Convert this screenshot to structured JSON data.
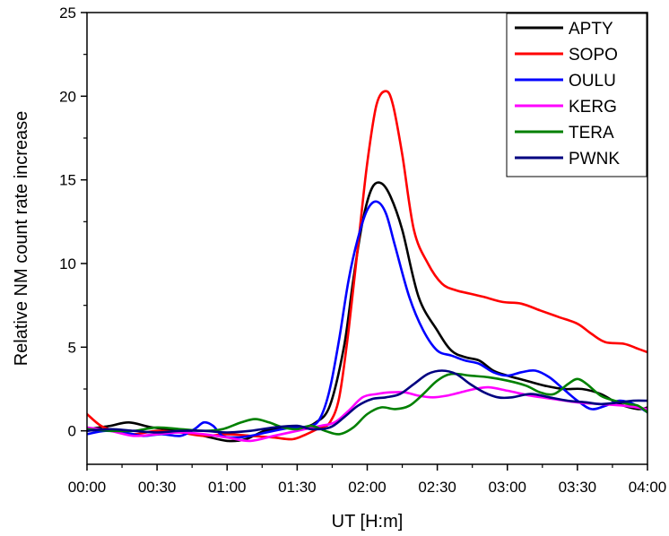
{
  "chart_data": {
    "type": "line",
    "xlabel": "UT [H:m]",
    "ylabel": "Relative NM count rate increase",
    "xlim": [
      0,
      240
    ],
    "ylim": [
      -2,
      25
    ],
    "x_ticks": [
      {
        "v": 0,
        "label": "00:00"
      },
      {
        "v": 30,
        "label": "00:30"
      },
      {
        "v": 60,
        "label": "01:00"
      },
      {
        "v": 90,
        "label": "01:30"
      },
      {
        "v": 120,
        "label": "02:00"
      },
      {
        "v": 150,
        "label": "02:30"
      },
      {
        "v": 180,
        "label": "03:00"
      },
      {
        "v": 210,
        "label": "03:30"
      },
      {
        "v": 240,
        "label": "04:00"
      }
    ],
    "y_ticks": [
      {
        "v": 0,
        "label": "0"
      },
      {
        "v": 5,
        "label": "5"
      },
      {
        "v": 10,
        "label": "10"
      },
      {
        "v": 15,
        "label": "15"
      },
      {
        "v": 20,
        "label": "20"
      },
      {
        "v": 25,
        "label": "25"
      }
    ],
    "legend_position": "top-right",
    "series": [
      {
        "name": "APTY",
        "color": "#000000",
        "points": [
          [
            0,
            0.1
          ],
          [
            10,
            0.3
          ],
          [
            18,
            0.5
          ],
          [
            28,
            0.2
          ],
          [
            40,
            0.0
          ],
          [
            50,
            -0.3
          ],
          [
            60,
            -0.6
          ],
          [
            68,
            -0.5
          ],
          [
            76,
            0.0
          ],
          [
            84,
            0.2
          ],
          [
            92,
            0.2
          ],
          [
            98,
            0.5
          ],
          [
            104,
            1.5
          ],
          [
            110,
            5.0
          ],
          [
            114,
            9.0
          ],
          [
            118,
            12.5
          ],
          [
            122,
            14.5
          ],
          [
            126,
            14.8
          ],
          [
            130,
            14.0
          ],
          [
            135,
            12.0
          ],
          [
            142,
            8.0
          ],
          [
            150,
            6.0
          ],
          [
            156,
            4.8
          ],
          [
            162,
            4.4
          ],
          [
            168,
            4.2
          ],
          [
            174,
            3.6
          ],
          [
            180,
            3.3
          ],
          [
            188,
            3.0
          ],
          [
            196,
            2.7
          ],
          [
            204,
            2.5
          ],
          [
            212,
            2.5
          ],
          [
            220,
            2.2
          ],
          [
            228,
            1.6
          ],
          [
            236,
            1.3
          ],
          [
            240,
            1.4
          ]
        ]
      },
      {
        "name": "SOPO",
        "color": "#ff0000",
        "points": [
          [
            0,
            1.0
          ],
          [
            6,
            0.3
          ],
          [
            12,
            0.0
          ],
          [
            20,
            -0.2
          ],
          [
            30,
            0.0
          ],
          [
            40,
            -0.1
          ],
          [
            50,
            -0.3
          ],
          [
            60,
            -0.2
          ],
          [
            70,
            -0.3
          ],
          [
            80,
            -0.4
          ],
          [
            88,
            -0.5
          ],
          [
            94,
            -0.2
          ],
          [
            100,
            0.2
          ],
          [
            104,
            0.5
          ],
          [
            108,
            2.0
          ],
          [
            112,
            6.0
          ],
          [
            116,
            11.0
          ],
          [
            120,
            16.0
          ],
          [
            124,
            19.5
          ],
          [
            128,
            20.3
          ],
          [
            131,
            19.5
          ],
          [
            135,
            16.5
          ],
          [
            140,
            12.0
          ],
          [
            146,
            10.0
          ],
          [
            152,
            8.8
          ],
          [
            158,
            8.4
          ],
          [
            164,
            8.2
          ],
          [
            170,
            8.0
          ],
          [
            178,
            7.7
          ],
          [
            186,
            7.6
          ],
          [
            194,
            7.2
          ],
          [
            202,
            6.8
          ],
          [
            210,
            6.4
          ],
          [
            216,
            5.8
          ],
          [
            222,
            5.3
          ],
          [
            230,
            5.2
          ],
          [
            236,
            4.9
          ],
          [
            240,
            4.7
          ]
        ]
      },
      {
        "name": "OULU",
        "color": "#0000ff",
        "points": [
          [
            0,
            -0.2
          ],
          [
            8,
            0.0
          ],
          [
            16,
            -0.1
          ],
          [
            24,
            -0.3
          ],
          [
            32,
            -0.2
          ],
          [
            40,
            -0.3
          ],
          [
            46,
            0.1
          ],
          [
            50,
            0.5
          ],
          [
            54,
            0.3
          ],
          [
            58,
            -0.3
          ],
          [
            64,
            -0.4
          ],
          [
            70,
            -0.3
          ],
          [
            80,
            0.0
          ],
          [
            88,
            0.2
          ],
          [
            96,
            0.3
          ],
          [
            100,
            0.8
          ],
          [
            104,
            2.5
          ],
          [
            108,
            5.5
          ],
          [
            112,
            9.0
          ],
          [
            116,
            11.5
          ],
          [
            120,
            13.2
          ],
          [
            124,
            13.7
          ],
          [
            128,
            13.0
          ],
          [
            132,
            11.0
          ],
          [
            138,
            8.0
          ],
          [
            144,
            6.0
          ],
          [
            150,
            4.8
          ],
          [
            156,
            4.5
          ],
          [
            162,
            4.2
          ],
          [
            168,
            4.0
          ],
          [
            174,
            3.5
          ],
          [
            180,
            3.3
          ],
          [
            186,
            3.5
          ],
          [
            192,
            3.6
          ],
          [
            198,
            3.2
          ],
          [
            204,
            2.5
          ],
          [
            210,
            1.8
          ],
          [
            216,
            1.3
          ],
          [
            222,
            1.5
          ],
          [
            228,
            1.8
          ],
          [
            234,
            1.6
          ],
          [
            240,
            1.1
          ]
        ]
      },
      {
        "name": "KERG",
        "color": "#ff00ff",
        "points": [
          [
            0,
            0.2
          ],
          [
            10,
            0.0
          ],
          [
            20,
            -0.3
          ],
          [
            30,
            -0.2
          ],
          [
            40,
            -0.1
          ],
          [
            50,
            -0.2
          ],
          [
            60,
            -0.4
          ],
          [
            70,
            -0.6
          ],
          [
            80,
            -0.3
          ],
          [
            90,
            0.0
          ],
          [
            100,
            0.3
          ],
          [
            106,
            0.5
          ],
          [
            112,
            1.2
          ],
          [
            118,
            2.0
          ],
          [
            124,
            2.2
          ],
          [
            130,
            2.3
          ],
          [
            136,
            2.3
          ],
          [
            142,
            2.1
          ],
          [
            148,
            2.0
          ],
          [
            154,
            2.1
          ],
          [
            160,
            2.3
          ],
          [
            166,
            2.5
          ],
          [
            172,
            2.6
          ],
          [
            180,
            2.4
          ],
          [
            190,
            2.1
          ],
          [
            200,
            1.9
          ],
          [
            210,
            1.7
          ],
          [
            220,
            1.6
          ],
          [
            230,
            1.5
          ],
          [
            240,
            1.3
          ]
        ]
      },
      {
        "name": "TERA",
        "color": "#008000",
        "points": [
          [
            0,
            0.1
          ],
          [
            10,
            0.0
          ],
          [
            20,
            0.0
          ],
          [
            30,
            0.2
          ],
          [
            40,
            0.1
          ],
          [
            50,
            0.0
          ],
          [
            58,
            0.1
          ],
          [
            66,
            0.5
          ],
          [
            72,
            0.7
          ],
          [
            78,
            0.5
          ],
          [
            84,
            0.2
          ],
          [
            90,
            0.1
          ],
          [
            96,
            0.3
          ],
          [
            102,
            0.0
          ],
          [
            108,
            -0.2
          ],
          [
            114,
            0.2
          ],
          [
            120,
            1.0
          ],
          [
            126,
            1.4
          ],
          [
            132,
            1.3
          ],
          [
            138,
            1.5
          ],
          [
            144,
            2.2
          ],
          [
            150,
            3.0
          ],
          [
            156,
            3.4
          ],
          [
            164,
            3.3
          ],
          [
            172,
            3.2
          ],
          [
            180,
            3.0
          ],
          [
            188,
            2.7
          ],
          [
            194,
            2.3
          ],
          [
            200,
            2.2
          ],
          [
            206,
            2.8
          ],
          [
            210,
            3.1
          ],
          [
            214,
            2.8
          ],
          [
            220,
            2.1
          ],
          [
            226,
            1.8
          ],
          [
            232,
            1.6
          ],
          [
            236,
            1.5
          ],
          [
            240,
            1.1
          ]
        ]
      },
      {
        "name": "PWNK",
        "color": "#000080",
        "points": [
          [
            0,
            0.0
          ],
          [
            10,
            0.1
          ],
          [
            20,
            0.0
          ],
          [
            30,
            -0.1
          ],
          [
            40,
            0.0
          ],
          [
            50,
            0.0
          ],
          [
            60,
            -0.1
          ],
          [
            70,
            0.0
          ],
          [
            80,
            0.2
          ],
          [
            90,
            0.3
          ],
          [
            96,
            0.1
          ],
          [
            104,
            0.2
          ],
          [
            110,
            0.8
          ],
          [
            116,
            1.5
          ],
          [
            122,
            1.9
          ],
          [
            128,
            2.0
          ],
          [
            134,
            2.2
          ],
          [
            140,
            2.8
          ],
          [
            146,
            3.4
          ],
          [
            152,
            3.6
          ],
          [
            158,
            3.4
          ],
          [
            164,
            2.8
          ],
          [
            170,
            2.3
          ],
          [
            176,
            2.0
          ],
          [
            182,
            2.0
          ],
          [
            190,
            2.2
          ],
          [
            198,
            2.0
          ],
          [
            206,
            1.8
          ],
          [
            214,
            1.7
          ],
          [
            220,
            1.6
          ],
          [
            228,
            1.7
          ],
          [
            234,
            1.8
          ],
          [
            240,
            1.8
          ]
        ]
      }
    ]
  }
}
